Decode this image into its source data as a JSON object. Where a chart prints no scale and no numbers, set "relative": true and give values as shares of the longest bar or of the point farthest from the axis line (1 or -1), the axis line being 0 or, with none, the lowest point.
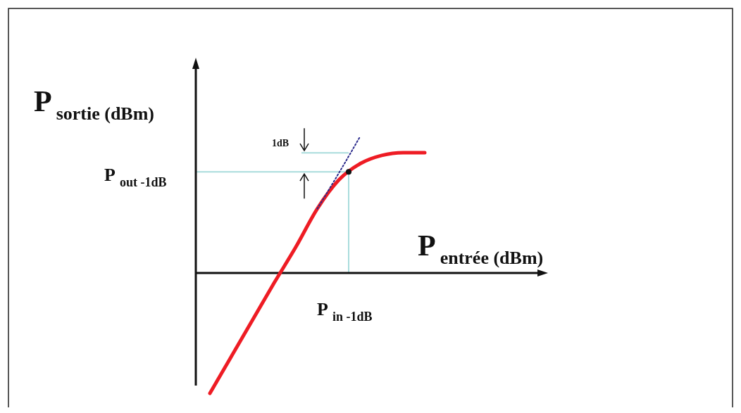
{
  "chart_data": {
    "type": "line",
    "relative": true,
    "xlabel": "P$_{entrée (dBm)}$",
    "ylabel": "P$_{sortie (dBm)}$",
    "categories": [
      null,
      null,
      null,
      null,
      null,
      null,
      null,
      null,
      null,
      null,
      null
    ],
    "series": [
      {
        "color": "#ee1c24",
        "values": [
          -0.88,
          -0.61,
          -0.34,
          -0.07,
          0.19,
          0.47,
          0.68,
          0.8,
          0.86,
          0.88,
          0.88
        ]
      },
      {
        "color": "#2b2b8c",
        "line_style": "dotted",
        "values": [
          null,
          null,
          null,
          null,
          null,
          0.47,
          0.73,
          1.0,
          null,
          null,
          null
        ]
      }
    ],
    "ref_lines": [
      {
        "axis": "y",
        "value": 0.74,
        "label": "P$_{out -1dB}$",
        "color": "#a8dcdc"
      }
    ],
    "annotations": [
      "1dB",
      "P$_{in -1dB}$"
    ]
  }
}
